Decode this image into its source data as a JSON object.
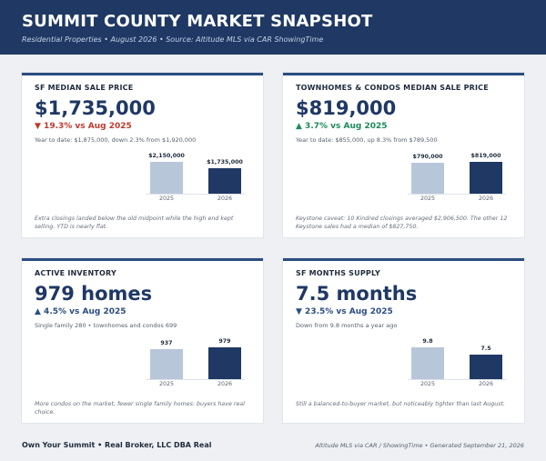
{
  "header": {
    "title": "SUMMIT COUNTY MARKET SNAPSHOT",
    "subtitle": "Residential Properties  •  August 2026  •  Source: Altitude MLS via CAR ShowingTime"
  },
  "cards": [
    {
      "title": "SF MEDIAN SALE PRICE",
      "value": "$1,735,000",
      "change": "▼ 19.3% vs Aug 2025",
      "sub": "Year to date: $1,875,000, down 2.3% from $1,920,000",
      "bars": [
        {
          "year": "2025",
          "label": "$2,150,000",
          "value": 2150000
        },
        {
          "year": "2026",
          "label": "$1,735,000",
          "value": 1735000
        }
      ],
      "note": "Extra closings landed below the old midpoint while the high end kept selling. YTD is nearly flat."
    },
    {
      "title": "TOWNHOMES & CONDOS MEDIAN SALE PRICE",
      "value": "$819,000",
      "change": "▲ 3.7% vs Aug 2025",
      "sub": "Year to date: $855,000, up 8.3% from $789,500",
      "bars": [
        {
          "year": "2025",
          "label": "$790,000",
          "value": 790000
        },
        {
          "year": "2026",
          "label": "$819,000",
          "value": 819000
        }
      ],
      "note": "Keystone caveat: 10 Kindred closings averaged $2,906,500. The other 12 Keystone sales had a median of $827,750."
    },
    {
      "title": "ACTIVE INVENTORY",
      "value": "979 homes",
      "change": "▲ 4.5% vs Aug 2025",
      "sub": "Single family 280  •  townhomes and condos 699",
      "bars": [
        {
          "year": "2025",
          "label": "937",
          "value": 937
        },
        {
          "year": "2026",
          "label": "979",
          "value": 979
        }
      ],
      "note": "More condos on the market, fewer single family homes: buyers have real choice."
    },
    {
      "title": "SF MONTHS SUPPLY",
      "value": "7.5 months",
      "change": "▼ 23.5% vs Aug 2025",
      "sub": "Down from 9.8 months a year ago",
      "bars": [
        {
          "year": "2025",
          "label": "9.8",
          "value": 9.8
        },
        {
          "year": "2026",
          "label": "7.5",
          "value": 7.5
        }
      ],
      "note": "Still a balanced-to-buyer market, but noticeably tighter than last August."
    }
  ],
  "colors": {
    "header_bg": "#1f3864",
    "bar_prior": "#b8c6da",
    "bar_current": "#1f3864",
    "down_red": "#c0392b",
    "up_green": "#1e8a5a",
    "navy": "#2b4d80"
  },
  "footer": {
    "left": "Own Your Summit  •  Real Broker, LLC DBA Real",
    "right": "Altitude MLS via CAR / ShowingTime  •  Generated September 21, 2026"
  }
}
